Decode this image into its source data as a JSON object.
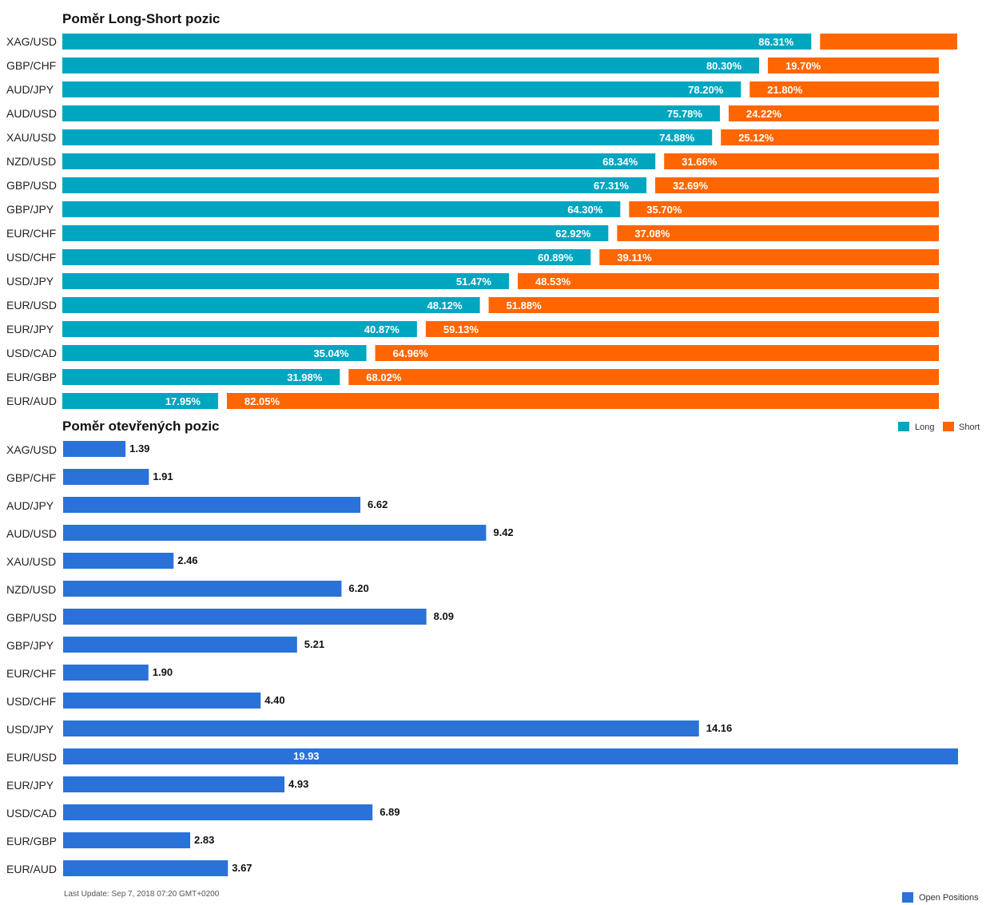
{
  "chart_data": [
    {
      "type": "bar",
      "stacked": true,
      "orientation": "horizontal",
      "title": "Poměr Long-Short pozic",
      "categories": [
        "XAG/USD",
        "GBP/CHF",
        "AUD/JPY",
        "AUD/USD",
        "XAU/USD",
        "NZD/USD",
        "GBP/USD",
        "GBP/JPY",
        "EUR/CHF",
        "USD/CHF",
        "USD/JPY",
        "EUR/USD",
        "EUR/JPY",
        "USD/CAD",
        "EUR/GBP",
        "EUR/AUD"
      ],
      "series": [
        {
          "name": "Long",
          "color": "#00a6c0",
          "values": [
            86.31,
            80.3,
            78.2,
            75.78,
            74.88,
            68.34,
            67.31,
            64.3,
            62.92,
            60.89,
            51.47,
            48.12,
            40.87,
            35.04,
            31.98,
            17.95
          ],
          "labels": [
            "86.31%",
            "80.30%",
            "78.20%",
            "75.78%",
            "74.88%",
            "68.34%",
            "67.31%",
            "64.30%",
            "62.92%",
            "60.89%",
            "51.47%",
            "48.12%",
            "40.87%",
            "35.04%",
            "31.98%",
            "17.95%"
          ]
        },
        {
          "name": "Short",
          "color": "#ff6600",
          "values": [
            13.69,
            19.7,
            21.8,
            24.22,
            25.12,
            31.66,
            32.69,
            35.7,
            37.08,
            39.11,
            48.53,
            51.88,
            59.13,
            64.96,
            68.02,
            82.05
          ],
          "labels": [
            "",
            "19.70%",
            "21.80%",
            "24.22%",
            "25.12%",
            "31.66%",
            "32.69%",
            "35.70%",
            "37.08%",
            "39.11%",
            "48.53%",
            "51.88%",
            "59.13%",
            "64.96%",
            "68.02%",
            "82.05%"
          ]
        }
      ],
      "xlim": [
        0,
        100
      ],
      "legend": "bottom-right"
    },
    {
      "type": "bar",
      "orientation": "horizontal",
      "title": "Poměr otevřených pozic",
      "categories": [
        "XAG/USD",
        "GBP/CHF",
        "AUD/JPY",
        "AUD/USD",
        "XAU/USD",
        "NZD/USD",
        "GBP/USD",
        "GBP/JPY",
        "EUR/CHF",
        "USD/CHF",
        "USD/JPY",
        "EUR/USD",
        "EUR/JPY",
        "USD/CAD",
        "EUR/GBP",
        "EUR/AUD"
      ],
      "series": [
        {
          "name": "Open Positions",
          "color": "#2a72d8",
          "values": [
            1.39,
            1.91,
            6.62,
            9.42,
            2.46,
            6.2,
            8.09,
            5.21,
            1.9,
            4.4,
            14.16,
            19.93,
            4.93,
            6.89,
            2.83,
            3.67
          ],
          "labels": [
            "1.39",
            "1.91",
            "6.62",
            "9.42",
            "2.46",
            "6.20",
            "8.09",
            "5.21",
            "1.90",
            "4.40",
            "14.16",
            "19.93",
            "4.93",
            "6.89",
            "2.83",
            "3.67"
          ]
        }
      ],
      "xlim": [
        0,
        19.93
      ],
      "legend": "bottom-right"
    }
  ],
  "footer": "Last Update: Sep 7, 2018 07:20 GMT+0200"
}
